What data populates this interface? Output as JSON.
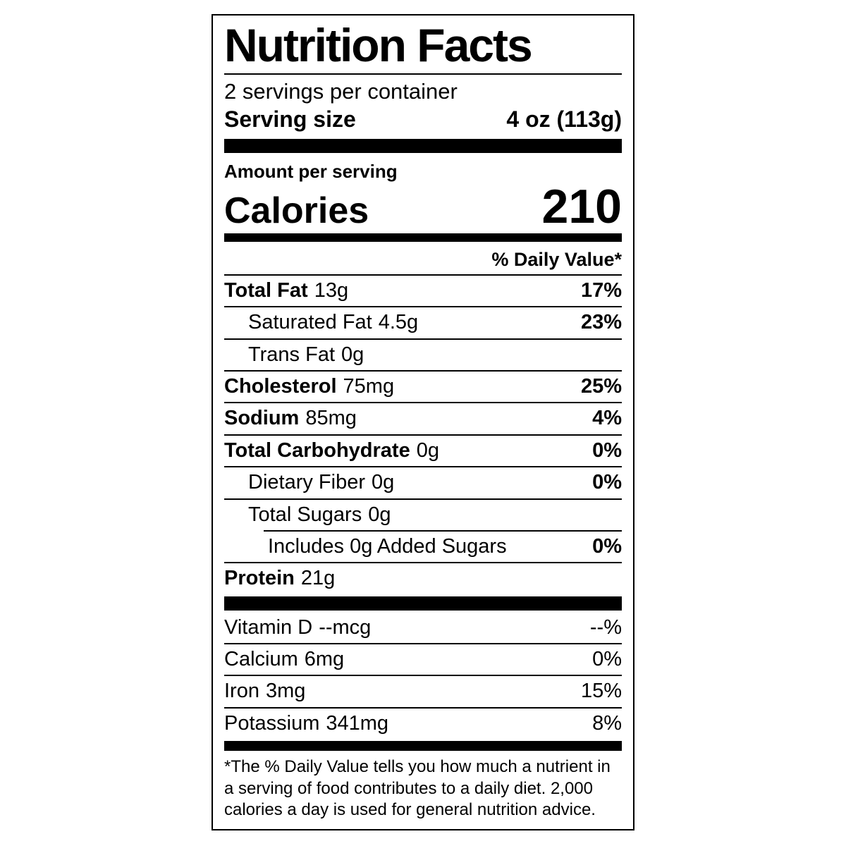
{
  "colors": {
    "text": "#000000",
    "background": "#ffffff",
    "border": "#000000"
  },
  "label": {
    "title": "Nutrition Facts",
    "servings_per_container": "2 servings per container",
    "serving_size_label": "Serving size",
    "serving_size_value": "4 oz (113g)",
    "amount_per_serving": "Amount per serving",
    "calories_label": "Calories",
    "calories_value": "210",
    "daily_value_header": "% Daily Value*",
    "rows": [
      {
        "name": "Total Fat",
        "amount": "13g",
        "dv": "17%"
      },
      {
        "name": "Saturated Fat",
        "amount": "4.5g",
        "dv": "23%"
      },
      {
        "name": "Trans Fat",
        "amount": "0g",
        "dv": ""
      },
      {
        "name": "Cholesterol",
        "amount": "75mg",
        "dv": "25%"
      },
      {
        "name": "Sodium",
        "amount": "85mg",
        "dv": "4%"
      },
      {
        "name": "Total Carbohydrate",
        "amount": "0g",
        "dv": "0%"
      },
      {
        "name": "Dietary Fiber",
        "amount": "0g",
        "dv": "0%"
      },
      {
        "name": "Total Sugars",
        "amount": "0g",
        "dv": ""
      },
      {
        "name": "Includes 0g Added Sugars",
        "amount": "",
        "dv": "0%"
      },
      {
        "name": "Protein",
        "amount": "21g",
        "dv": ""
      }
    ],
    "vitamins": [
      {
        "name": "Vitamin D",
        "amount": "--mcg",
        "dv": "--%"
      },
      {
        "name": "Calcium",
        "amount": "6mg",
        "dv": "0%"
      },
      {
        "name": "Iron",
        "amount": "3mg",
        "dv": "15%"
      },
      {
        "name": "Potassium",
        "amount": "341mg",
        "dv": "8%"
      }
    ],
    "footnote": "*The % Daily Value tells you how much a nutrient in a serving of food contributes to a daily diet. 2,000 calories a day is used for general nutrition advice."
  }
}
